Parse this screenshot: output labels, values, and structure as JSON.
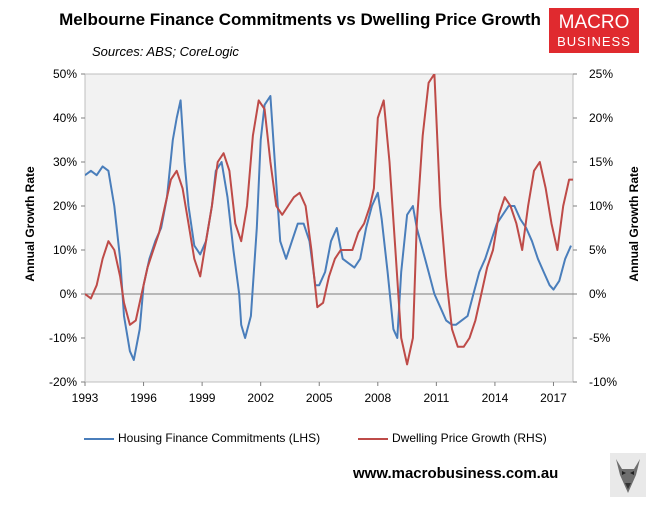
{
  "header": {
    "title": "Melbourne Finance Commitments vs Dwelling Price Growth",
    "subtitle": "Sources: ABS; CoreLogic"
  },
  "logo": {
    "line1": "MACRO",
    "line2": "BUSINESS"
  },
  "footer": {
    "url": "www.macrobusiness.com.au"
  },
  "colors": {
    "finance": "#4a7ebb",
    "prices": "#be4b48",
    "plot_bg": "#f2f2f2",
    "logo_bg": "#e02a2f"
  },
  "chart_data": {
    "type": "line",
    "x_ticks": [
      "1993",
      "1996",
      "1999",
      "2002",
      "2005",
      "2008",
      "2011",
      "2014",
      "2017"
    ],
    "x_range": [
      1993.0,
      2018.0
    ],
    "y_left": {
      "label": "Annual Growth Rate",
      "range": [
        -20,
        50
      ],
      "ticks": [
        "-20%",
        "-10%",
        "0%",
        "10%",
        "20%",
        "30%",
        "40%",
        "50%"
      ]
    },
    "y_right": {
      "label": "Annual Growth Rate",
      "range": [
        -10,
        25
      ],
      "ticks": [
        "-10%",
        "-5%",
        "0%",
        "5%",
        "10%",
        "15%",
        "20%",
        "25%"
      ]
    },
    "grid": false,
    "legend_position": "bottom",
    "series": [
      {
        "name": "Housing Finance Commitments (LHS)",
        "axis": "left",
        "color": "#4a7ebb",
        "x": [
          1993.0,
          1993.3,
          1993.6,
          1993.9,
          1994.2,
          1994.5,
          1994.8,
          1995.0,
          1995.3,
          1995.5,
          1995.8,
          1996.0,
          1996.3,
          1996.6,
          1996.9,
          1997.2,
          1997.5,
          1997.7,
          1997.9,
          1998.1,
          1998.3,
          1998.6,
          1998.9,
          1999.2,
          1999.5,
          1999.7,
          2000.0,
          2000.3,
          2000.6,
          2000.9,
          2001.0,
          2001.2,
          2001.5,
          2001.8,
          2002.0,
          2002.2,
          2002.5,
          2002.8,
          2003.0,
          2003.3,
          2003.6,
          2003.9,
          2004.2,
          2004.5,
          2004.8,
          2005.0,
          2005.3,
          2005.6,
          2005.9,
          2006.2,
          2006.5,
          2006.8,
          2007.1,
          2007.4,
          2007.7,
          2008.0,
          2008.2,
          2008.5,
          2008.8,
          2009.0,
          2009.2,
          2009.5,
          2009.8,
          2010.0,
          2010.3,
          2010.6,
          2010.9,
          2011.2,
          2011.5,
          2011.8,
          2012.0,
          2012.3,
          2012.6,
          2012.9,
          2013.2,
          2013.5,
          2013.8,
          2014.1,
          2014.4,
          2014.7,
          2015.0,
          2015.3,
          2015.6,
          2015.9,
          2016.2,
          2016.5,
          2016.8,
          2017.0,
          2017.3,
          2017.6,
          2017.9
        ],
        "values": [
          27,
          28,
          27,
          29,
          28,
          20,
          8,
          -5,
          -13,
          -15,
          -8,
          2,
          8,
          12,
          15,
          22,
          35,
          40,
          44,
          30,
          20,
          11,
          9,
          12,
          20,
          28,
          30,
          22,
          10,
          0,
          -7,
          -10,
          -5,
          15,
          35,
          43,
          45,
          25,
          12,
          8,
          12,
          16,
          16,
          12,
          2,
          2,
          5,
          12,
          15,
          8,
          7,
          6,
          8,
          15,
          20,
          23,
          17,
          5,
          -8,
          -10,
          5,
          18,
          20,
          15,
          10,
          5,
          0,
          -3,
          -6,
          -7,
          -7,
          -6,
          -5,
          0,
          5,
          8,
          12,
          16,
          18,
          20,
          20,
          17,
          15,
          12,
          8,
          5,
          2,
          1,
          3,
          8,
          11
        ]
      },
      {
        "name": "Dwelling Price Growth (RHS)",
        "axis": "right",
        "color": "#be4b48",
        "x": [
          1993.0,
          1993.3,
          1993.6,
          1993.9,
          1994.2,
          1994.5,
          1994.8,
          1995.0,
          1995.3,
          1995.6,
          1995.9,
          1996.2,
          1996.5,
          1996.8,
          1997.1,
          1997.4,
          1997.7,
          1998.0,
          1998.3,
          1998.6,
          1998.9,
          1999.2,
          1999.5,
          1999.8,
          2000.1,
          2000.4,
          2000.7,
          2001.0,
          2001.3,
          2001.6,
          2001.9,
          2002.2,
          2002.5,
          2002.8,
          2003.1,
          2003.4,
          2003.7,
          2004.0,
          2004.3,
          2004.6,
          2004.9,
          2005.2,
          2005.5,
          2005.8,
          2006.1,
          2006.4,
          2006.7,
          2007.0,
          2007.3,
          2007.6,
          2007.8,
          2008.0,
          2008.3,
          2008.6,
          2008.9,
          2009.2,
          2009.5,
          2009.8,
          2010.0,
          2010.3,
          2010.6,
          2010.9,
          2011.2,
          2011.5,
          2011.8,
          2012.1,
          2012.4,
          2012.7,
          2013.0,
          2013.3,
          2013.6,
          2013.9,
          2014.2,
          2014.5,
          2014.8,
          2015.1,
          2015.4,
          2015.7,
          2016.0,
          2016.3,
          2016.6,
          2016.9,
          2017.2,
          2017.5,
          2017.8,
          2018.0
        ],
        "values": [
          0,
          -0.5,
          1,
          4,
          6,
          5,
          2,
          -1,
          -3.5,
          -3,
          0,
          3,
          5,
          7,
          10,
          13,
          14,
          12,
          8,
          4,
          2,
          6,
          10,
          15,
          16,
          14,
          8,
          6,
          10,
          18,
          22,
          21,
          15,
          10,
          9,
          10,
          11,
          11.5,
          10,
          5,
          -1.5,
          -1,
          2,
          4,
          5,
          5,
          5,
          7,
          8,
          10,
          12,
          20,
          22,
          15,
          5,
          -5,
          -8,
          -5,
          8,
          18,
          24,
          25,
          10,
          2,
          -4,
          -6,
          -6,
          -5,
          -3,
          0,
          3,
          5,
          9,
          11,
          10,
          8,
          5,
          10,
          14,
          15,
          12,
          8,
          5,
          10,
          13,
          13
        ]
      }
    ]
  }
}
